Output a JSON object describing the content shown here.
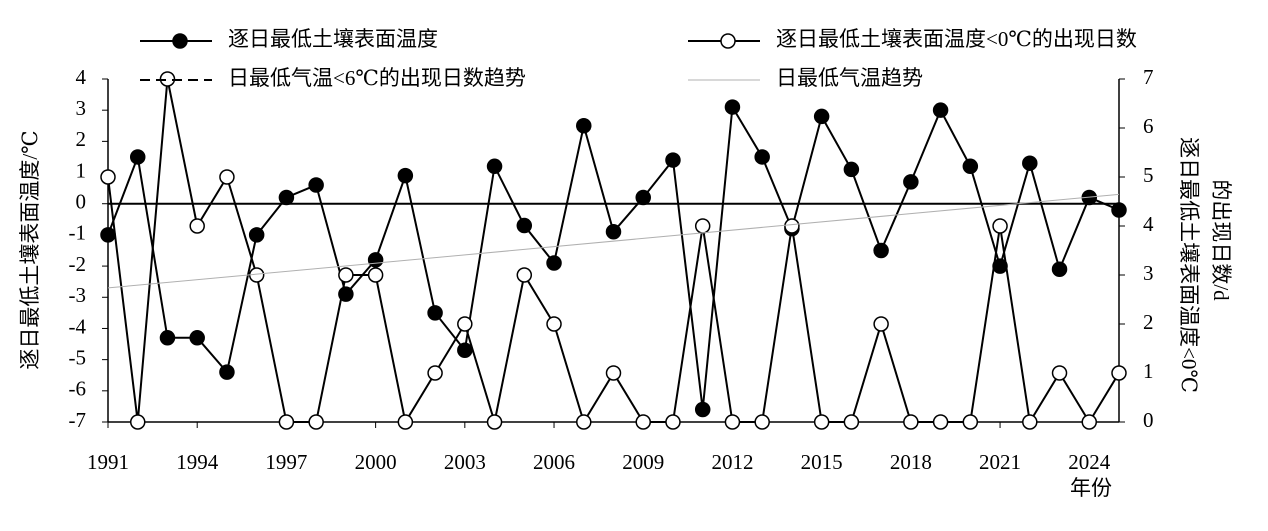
{
  "chart_data": {
    "type": "line",
    "x_label": "年份",
    "y_label": "逐日最低土壤表面温度/℃",
    "y2_label": [
      "逐日最低土壤表面温度<0℃",
      "的出现日数/d"
    ],
    "x": [
      1991,
      1992,
      1993,
      1994,
      1995,
      1996,
      1997,
      1998,
      1999,
      2000,
      2001,
      2002,
      2003,
      2004,
      2005,
      2006,
      2007,
      2008,
      2009,
      2010,
      2011,
      2012,
      2013,
      2014,
      2015,
      2016,
      2017,
      2018,
      2019,
      2020,
      2021,
      2022,
      2023,
      2024,
      2025
    ],
    "xlim": [
      1991,
      2025
    ],
    "xticks": [
      1991,
      1994,
      1997,
      2000,
      2003,
      2006,
      2009,
      2012,
      2015,
      2018,
      2021,
      2024
    ],
    "ylim": [
      -7,
      4
    ],
    "yticks": [
      -7,
      -6,
      -5,
      -4,
      -3,
      -2,
      -1,
      0,
      1,
      2,
      3,
      4
    ],
    "y2lim": [
      0,
      7
    ],
    "y2ticks": [
      0,
      1,
      2,
      3,
      4,
      5,
      6,
      7
    ],
    "grid": false,
    "series": [
      {
        "name": "逐日最低土壤表面温度",
        "color": "#000000",
        "marker": "filled",
        "values": [
          -1.0,
          1.5,
          -4.3,
          -4.3,
          -5.4,
          -1.0,
          0.2,
          0.6,
          -2.9,
          -1.8,
          0.9,
          -3.5,
          -4.7,
          1.2,
          -0.7,
          -1.9,
          2.5,
          -0.9,
          0.2,
          1.4,
          -6.6,
          3.1,
          1.5,
          -0.8,
          2.8,
          1.1,
          -1.5,
          0.7,
          3.0,
          1.2,
          -2.0,
          1.3,
          -2.1,
          0.2,
          -0.2
        ]
      },
      {
        "name": "逐日最低土壤表面温度<0℃的出现日数",
        "color": "#000000",
        "marker": "open",
        "axis": "y2",
        "values": [
          5,
          0,
          7,
          4,
          5,
          3,
          0,
          0,
          3,
          3,
          0,
          1,
          2,
          0,
          3,
          2,
          0,
          1,
          0,
          0,
          4,
          0,
          0,
          4,
          0,
          0,
          2,
          0,
          0,
          0,
          4,
          0,
          1,
          0,
          1
        ]
      },
      {
        "name": "日最低气温<6℃的出现日数趋势",
        "color": "#000000",
        "style": "dashed",
        "axis": "y2",
        "x": [],
        "values": []
      },
      {
        "name": "日最低气温趋势",
        "color": "#b0b0b0",
        "style": "thin",
        "x": [
          1991,
          2025
        ],
        "values": [
          -2.7,
          0.3
        ]
      }
    ]
  }
}
